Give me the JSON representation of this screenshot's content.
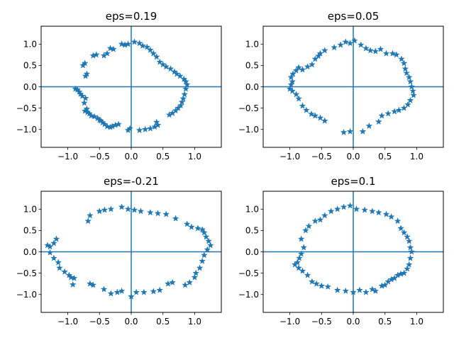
{
  "chart_data": [
    {
      "type": "scatter",
      "title": "eps=0.19",
      "xlim": [
        -1.42,
        1.42
      ],
      "ylim": [
        -1.42,
        1.42
      ],
      "xticks": [
        -1.0,
        -0.5,
        0.0,
        0.5,
        1.0
      ],
      "yticks": [
        -1.0,
        -0.5,
        0.0,
        0.5,
        1.0
      ],
      "xtick_labels": [
        "−1.0",
        "−0.5",
        "0.0",
        "0.5",
        "1.0"
      ],
      "ytick_labels": [
        "−1.0",
        "−0.5",
        "0.0",
        "0.5",
        "1.0"
      ],
      "reference_lines": {
        "x": 0,
        "y": 0
      },
      "marker": "star",
      "color": "#1f77b4",
      "points": [
        [
          -0.88,
          -0.05
        ],
        [
          -0.85,
          -0.07
        ],
        [
          -0.82,
          -0.12
        ],
        [
          -0.8,
          -0.17
        ],
        [
          -0.77,
          -0.22
        ],
        [
          -0.72,
          -0.27
        ],
        [
          -0.74,
          -0.38
        ],
        [
          -0.7,
          -0.52
        ],
        [
          -0.73,
          -0.57
        ],
        [
          -0.69,
          -0.6
        ],
        [
          -0.66,
          -0.63
        ],
        [
          -0.63,
          -0.68
        ],
        [
          -0.58,
          -0.7
        ],
        [
          -0.53,
          -0.74
        ],
        [
          -0.5,
          -0.78
        ],
        [
          -0.48,
          -0.8
        ],
        [
          -0.45,
          -0.84
        ],
        [
          -0.42,
          -0.88
        ],
        [
          -0.38,
          -0.93
        ],
        [
          -0.33,
          -0.95
        ],
        [
          -0.3,
          -0.93
        ],
        [
          -0.25,
          -0.9
        ],
        [
          -0.2,
          -0.88
        ],
        [
          -0.05,
          -1.02
        ],
        [
          -0.02,
          -0.98
        ],
        [
          0.13,
          -1.02
        ],
        [
          0.22,
          -1.0
        ],
        [
          0.3,
          -0.98
        ],
        [
          0.37,
          -0.94
        ],
        [
          0.42,
          -0.9
        ],
        [
          0.4,
          -0.83
        ],
        [
          0.6,
          -0.66
        ],
        [
          0.65,
          -0.62
        ],
        [
          0.7,
          -0.56
        ],
        [
          0.74,
          -0.5
        ],
        [
          0.78,
          -0.44
        ],
        [
          0.8,
          -0.36
        ],
        [
          0.82,
          -0.28
        ],
        [
          0.84,
          -0.18
        ],
        [
          0.86,
          -0.05
        ],
        [
          0.88,
          0.05
        ],
        [
          0.86,
          0.12
        ],
        [
          0.83,
          0.18
        ],
        [
          0.77,
          0.25
        ],
        [
          0.72,
          0.3
        ],
        [
          0.68,
          0.35
        ],
        [
          0.62,
          0.42
        ],
        [
          0.55,
          0.47
        ],
        [
          0.5,
          0.52
        ],
        [
          0.45,
          0.58
        ],
        [
          0.4,
          0.7
        ],
        [
          0.35,
          0.78
        ],
        [
          0.3,
          0.86
        ],
        [
          0.25,
          0.93
        ],
        [
          0.18,
          0.96
        ],
        [
          0.13,
          1.02
        ],
        [
          0.05,
          1.05
        ],
        [
          -0.05,
          1.0
        ],
        [
          -0.1,
          0.98
        ],
        [
          -0.15,
          1.0
        ],
        [
          -0.28,
          0.88
        ],
        [
          -0.33,
          0.9
        ],
        [
          -0.38,
          0.78
        ],
        [
          -0.43,
          0.73
        ],
        [
          -0.55,
          0.75
        ],
        [
          -0.6,
          0.73
        ],
        [
          -0.73,
          0.55
        ],
        [
          -0.76,
          0.5
        ],
        [
          -0.7,
          0.3
        ],
        [
          -0.72,
          0.25
        ]
      ]
    },
    {
      "type": "scatter",
      "title": "eps=0.05",
      "xlim": [
        -1.42,
        1.42
      ],
      "ylim": [
        -1.42,
        1.42
      ],
      "xticks": [
        -1.0,
        -0.5,
        0.0,
        0.5,
        1.0
      ],
      "yticks": [
        -1.0,
        -0.5,
        0.0,
        0.5,
        1.0
      ],
      "xtick_labels": [
        "−1.0",
        "−0.5",
        "0.0",
        "0.5",
        "1.0"
      ],
      "ytick_labels": [
        "−1.0",
        "−0.5",
        "0.0",
        "0.5",
        "1.0"
      ],
      "reference_lines": {
        "x": 0,
        "y": 0
      },
      "marker": "star",
      "color": "#1f77b4",
      "points": [
        [
          -1.0,
          -0.05
        ],
        [
          -0.98,
          0.05
        ],
        [
          -0.96,
          0.12
        ],
        [
          -0.98,
          0.22
        ],
        [
          -0.95,
          0.3
        ],
        [
          -0.9,
          0.38
        ],
        [
          -0.86,
          0.45
        ],
        [
          -0.8,
          0.4
        ],
        [
          -0.72,
          0.47
        ],
        [
          -0.65,
          0.52
        ],
        [
          -0.6,
          0.65
        ],
        [
          -0.55,
          0.72
        ],
        [
          -0.52,
          0.78
        ],
        [
          -0.45,
          0.85
        ],
        [
          -0.3,
          0.92
        ],
        [
          -0.2,
          0.98
        ],
        [
          -0.12,
          1.05
        ],
        [
          -0.05,
          1.02
        ],
        [
          0.02,
          1.08
        ],
        [
          0.12,
          0.98
        ],
        [
          0.2,
          0.9
        ],
        [
          0.27,
          0.85
        ],
        [
          0.35,
          0.83
        ],
        [
          0.43,
          0.88
        ],
        [
          0.52,
          0.78
        ],
        [
          0.62,
          0.78
        ],
        [
          0.68,
          0.75
        ],
        [
          0.76,
          0.65
        ],
        [
          0.8,
          0.55
        ],
        [
          0.82,
          0.42
        ],
        [
          0.84,
          0.32
        ],
        [
          0.88,
          0.22
        ],
        [
          0.9,
          0.12
        ],
        [
          0.92,
          0.0
        ],
        [
          0.94,
          -0.1
        ],
        [
          0.95,
          -0.2
        ],
        [
          0.9,
          -0.32
        ],
        [
          0.86,
          -0.42
        ],
        [
          0.8,
          -0.5
        ],
        [
          0.72,
          -0.55
        ],
        [
          0.65,
          -0.58
        ],
        [
          0.55,
          -0.63
        ],
        [
          0.45,
          -0.68
        ],
        [
          0.4,
          -0.82
        ],
        [
          0.25,
          -0.92
        ],
        [
          0.15,
          -1.05
        ],
        [
          -0.05,
          -1.05
        ],
        [
          -0.15,
          -1.07
        ],
        [
          -0.52,
          -0.73
        ],
        [
          -0.6,
          -0.68
        ],
        [
          -0.66,
          -0.64
        ],
        [
          -0.74,
          -0.55
        ],
        [
          -0.8,
          -0.45
        ],
        [
          -0.86,
          -0.28
        ],
        [
          -0.9,
          -0.18
        ],
        [
          -0.96,
          -0.1
        ],
        [
          -0.45,
          -0.8
        ]
      ]
    },
    {
      "type": "scatter",
      "title": "eps=-0.21",
      "xlim": [
        -1.42,
        1.42
      ],
      "ylim": [
        -1.42,
        1.42
      ],
      "xticks": [
        -1.0,
        -0.5,
        0.0,
        0.5,
        1.0
      ],
      "yticks": [
        -1.0,
        -0.5,
        0.0,
        0.5,
        1.0
      ],
      "xtick_labels": [
        "−1.0",
        "−0.5",
        "0.0",
        "0.5",
        "1.0"
      ],
      "ytick_labels": [
        "−1.0",
        "−0.5",
        "0.0",
        "0.5",
        "1.0"
      ],
      "reference_lines": {
        "x": 0,
        "y": 0
      },
      "marker": "star",
      "color": "#1f77b4",
      "points": [
        [
          -1.32,
          0.15
        ],
        [
          -1.28,
          0.12
        ],
        [
          -1.22,
          0.2
        ],
        [
          -1.18,
          0.3
        ],
        [
          -1.28,
          -0.02
        ],
        [
          -1.22,
          -0.15
        ],
        [
          -1.15,
          -0.25
        ],
        [
          -1.13,
          -0.38
        ],
        [
          -1.05,
          -0.47
        ],
        [
          -0.98,
          -0.55
        ],
        [
          -0.95,
          -0.6
        ],
        [
          -0.9,
          -0.62
        ],
        [
          -0.92,
          -0.77
        ],
        [
          -0.65,
          -0.75
        ],
        [
          -0.6,
          -0.78
        ],
        [
          -0.43,
          -0.88
        ],
        [
          -0.32,
          -0.98
        ],
        [
          -0.22,
          -0.95
        ],
        [
          -0.15,
          -0.92
        ],
        [
          0.0,
          -1.05
        ],
        [
          0.08,
          -0.95
        ],
        [
          0.2,
          -0.95
        ],
        [
          0.35,
          -0.93
        ],
        [
          0.45,
          -0.9
        ],
        [
          0.58,
          -0.75
        ],
        [
          0.65,
          -0.72
        ],
        [
          0.85,
          -0.78
        ],
        [
          0.92,
          -0.72
        ],
        [
          1.0,
          -0.6
        ],
        [
          1.02,
          -0.5
        ],
        [
          1.08,
          -0.38
        ],
        [
          1.12,
          -0.22
        ],
        [
          1.15,
          -0.08
        ],
        [
          1.2,
          0.05
        ],
        [
          1.25,
          0.15
        ],
        [
          1.22,
          0.25
        ],
        [
          1.18,
          0.35
        ],
        [
          1.15,
          0.45
        ],
        [
          1.12,
          0.52
        ],
        [
          1.05,
          0.55
        ],
        [
          0.95,
          0.58
        ],
        [
          0.88,
          0.65
        ],
        [
          0.7,
          0.78
        ],
        [
          0.55,
          0.88
        ],
        [
          0.42,
          0.9
        ],
        [
          0.3,
          0.92
        ],
        [
          0.15,
          0.95
        ],
        [
          0.05,
          0.98
        ],
        [
          -0.05,
          1.0
        ],
        [
          -0.15,
          1.05
        ],
        [
          -0.32,
          1.0
        ],
        [
          -0.42,
          0.98
        ],
        [
          -0.5,
          0.95
        ],
        [
          -0.65,
          0.85
        ],
        [
          -0.68,
          0.72
        ]
      ]
    },
    {
      "type": "scatter",
      "title": "eps=0.1",
      "xlim": [
        -1.42,
        1.42
      ],
      "ylim": [
        -1.42,
        1.42
      ],
      "xticks": [
        -1.0,
        -0.5,
        0.0,
        0.5,
        1.0
      ],
      "yticks": [
        -1.0,
        -0.5,
        0.0,
        0.5,
        1.0
      ],
      "xtick_labels": [
        "−1.0",
        "−0.5",
        "0.0",
        "0.5",
        "1.0"
      ],
      "ytick_labels": [
        "−1.0",
        "−0.5",
        "0.0",
        "0.5",
        "1.0"
      ],
      "reference_lines": {
        "x": 0,
        "y": 0
      },
      "marker": "star",
      "color": "#1f77b4",
      "points": [
        [
          -0.92,
          -0.3
        ],
        [
          -0.88,
          -0.25
        ],
        [
          -0.85,
          -0.15
        ],
        [
          -0.82,
          -0.05
        ],
        [
          -0.78,
          0.1
        ],
        [
          -0.82,
          0.3
        ],
        [
          -0.75,
          0.5
        ],
        [
          -0.7,
          0.6
        ],
        [
          -0.6,
          0.72
        ],
        [
          -0.52,
          0.75
        ],
        [
          -0.45,
          0.85
        ],
        [
          -0.35,
          0.95
        ],
        [
          -0.25,
          1.0
        ],
        [
          -0.15,
          1.05
        ],
        [
          -0.05,
          1.08
        ],
        [
          0.05,
          1.0
        ],
        [
          0.18,
          0.98
        ],
        [
          0.3,
          0.95
        ],
        [
          0.4,
          0.92
        ],
        [
          0.52,
          0.88
        ],
        [
          0.6,
          0.82
        ],
        [
          0.7,
          0.72
        ],
        [
          0.75,
          0.55
        ],
        [
          0.8,
          0.45
        ],
        [
          0.85,
          0.35
        ],
        [
          0.88,
          0.25
        ],
        [
          0.9,
          0.1
        ],
        [
          0.92,
          0.0
        ],
        [
          0.9,
          -0.15
        ],
        [
          0.88,
          -0.3
        ],
        [
          0.85,
          -0.4
        ],
        [
          0.8,
          -0.5
        ],
        [
          0.75,
          -0.52
        ],
        [
          0.7,
          -0.55
        ],
        [
          0.65,
          -0.62
        ],
        [
          0.6,
          -0.65
        ],
        [
          0.55,
          -0.7
        ],
        [
          0.5,
          -0.78
        ],
        [
          0.45,
          -0.8
        ],
        [
          0.35,
          -0.92
        ],
        [
          0.3,
          -0.88
        ],
        [
          0.2,
          -0.95
        ],
        [
          0.1,
          -0.9
        ],
        [
          0.0,
          -0.95
        ],
        [
          -0.12,
          -0.92
        ],
        [
          -0.25,
          -0.9
        ],
        [
          -0.4,
          -0.82
        ],
        [
          -0.5,
          -0.8
        ],
        [
          -0.58,
          -0.75
        ],
        [
          -0.65,
          -0.7
        ],
        [
          -0.72,
          -0.55
        ],
        [
          -0.8,
          -0.45
        ],
        [
          -0.86,
          -0.38
        ]
      ]
    }
  ]
}
